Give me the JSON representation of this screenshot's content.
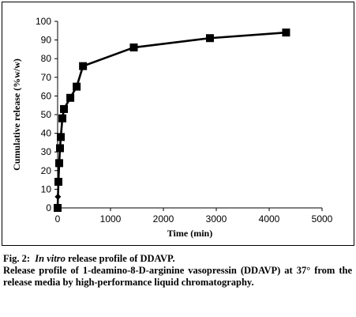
{
  "chart_data": {
    "type": "line",
    "title": "",
    "xlabel": "Time (min)",
    "ylabel": "Cumulative release (%w/w)",
    "xlim": [
      0,
      5000
    ],
    "ylim": [
      0,
      100
    ],
    "x_ticks": [
      0,
      1000,
      2000,
      3000,
      4000,
      5000
    ],
    "y_ticks": [
      0,
      10,
      20,
      30,
      40,
      50,
      60,
      70,
      80,
      90,
      100
    ],
    "grid": false,
    "legend": "none",
    "series": [
      {
        "color": "#000000",
        "marker": "square",
        "x": [
          0,
          15,
          30,
          45,
          60,
          90,
          120,
          240,
          360,
          480,
          1440,
          2880,
          4320
        ],
        "y": [
          0,
          14,
          24,
          32,
          38,
          48,
          53,
          59,
          65,
          76,
          86,
          91,
          94
        ]
      }
    ],
    "extra_marks": [
      {
        "marker": "diamond",
        "x": 5,
        "y": 6
      }
    ]
  },
  "caption": {
    "fig_label": "Fig. 2:",
    "title_italic": "In vitro",
    "title_rest": "release profile of DDAVP.",
    "description": "Release profile of 1-deamino-8-D-arginine vasopressin (DDAVP) at 37° from the release media by high-performance liquid chromatography."
  }
}
